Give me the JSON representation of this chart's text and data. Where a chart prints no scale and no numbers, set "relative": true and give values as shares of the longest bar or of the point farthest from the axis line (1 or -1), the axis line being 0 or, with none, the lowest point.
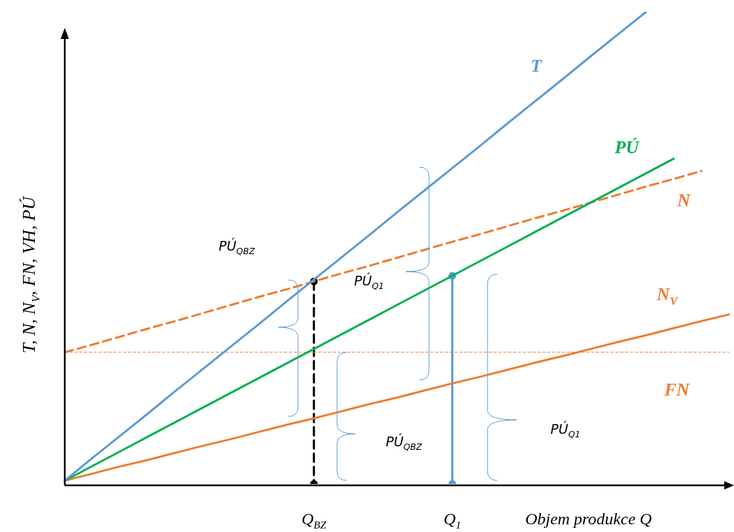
{
  "chart_data": {
    "type": "line",
    "relative": true,
    "ylabel": "T, N, N$_{V}$, FN, VH, PÚ",
    "xlabel": "Objem produkce Q",
    "categories": [
      null,
      null,
      null,
      null,
      null,
      null,
      null,
      null,
      null,
      "Q$_{BZ}$",
      null,
      null,
      null,
      null,
      "Q$_{1}$",
      null,
      null,
      null,
      null,
      null,
      null,
      null,
      null,
      null,
      null
    ],
    "marker": "none",
    "legend": false,
    "series": [
      {
        "name": "T",
        "color": "#5b9bd5",
        "values": [
          0.007,
          0.055,
          0.102,
          0.149,
          0.197,
          0.244,
          0.291,
          0.338,
          0.386,
          0.433,
          0.48,
          0.527,
          0.575,
          0.622,
          0.669,
          0.716,
          0.764,
          0.811,
          0.858,
          0.906,
          0.953,
          1.0,
          null,
          null,
          null
        ]
      },
      {
        "name": "PÚ",
        "color": "#00b050",
        "values": [
          0.007,
          0.038,
          0.069,
          0.1,
          0.131,
          0.162,
          0.193,
          0.224,
          0.255,
          0.286,
          0.317,
          0.348,
          0.379,
          0.41,
          0.441,
          0.472,
          0.503,
          0.534,
          0.565,
          0.596,
          0.627,
          0.658,
          0.689,
          null,
          null
        ]
      },
      {
        "name": "N",
        "color": "#ed7d31",
        "line_style": "dashed",
        "values": [
          0.279,
          0.295,
          0.312,
          0.329,
          0.345,
          0.362,
          0.379,
          0.396,
          0.412,
          0.429,
          0.446,
          0.462,
          0.479,
          0.496,
          0.513,
          0.529,
          0.546,
          0.563,
          0.579,
          0.596,
          0.613,
          0.63,
          0.646,
          0.663,
          null
        ]
      },
      {
        "name": "N$_{V}$",
        "color": "#ed7d31",
        "values": [
          0.007,
          0.022,
          0.037,
          0.051,
          0.066,
          0.081,
          0.095,
          0.11,
          0.125,
          0.139,
          0.154,
          0.169,
          0.183,
          0.198,
          0.213,
          0.227,
          0.242,
          0.257,
          0.271,
          0.286,
          0.301,
          0.315,
          0.33,
          0.345,
          0.359
        ]
      },
      {
        "name": "FN",
        "color": "#ed7d31",
        "line_style": "dotted",
        "values": [
          0.279,
          0.279,
          0.279,
          0.279,
          0.279,
          0.279,
          0.279,
          0.279,
          0.279,
          0.279,
          0.279,
          0.279,
          0.279,
          0.279,
          0.279,
          0.279,
          0.279,
          0.279,
          0.279,
          0.279,
          0.279,
          0.279,
          0.279,
          0.279,
          0.279
        ]
      },
      {
        "color": "#000000",
        "line_style": "dashed",
        "marker": "circle",
        "x": [
          "Q$_{BZ}$",
          "Q$_{BZ}$"
        ],
        "values": [
          0.429,
          0
        ]
      },
      {
        "color": "#5b9bd5",
        "marker": "circle",
        "x": [
          "Q$_{1}$",
          "Q$_{1}$"
        ],
        "values": [
          0.441,
          0
        ]
      }
    ],
    "annotations": [
      "PÚ$_{QBZ}$",
      "PÚ$_{Q1}$",
      "PÚ$_{QBZ}$",
      "PÚ$_{Q1}$"
    ]
  }
}
